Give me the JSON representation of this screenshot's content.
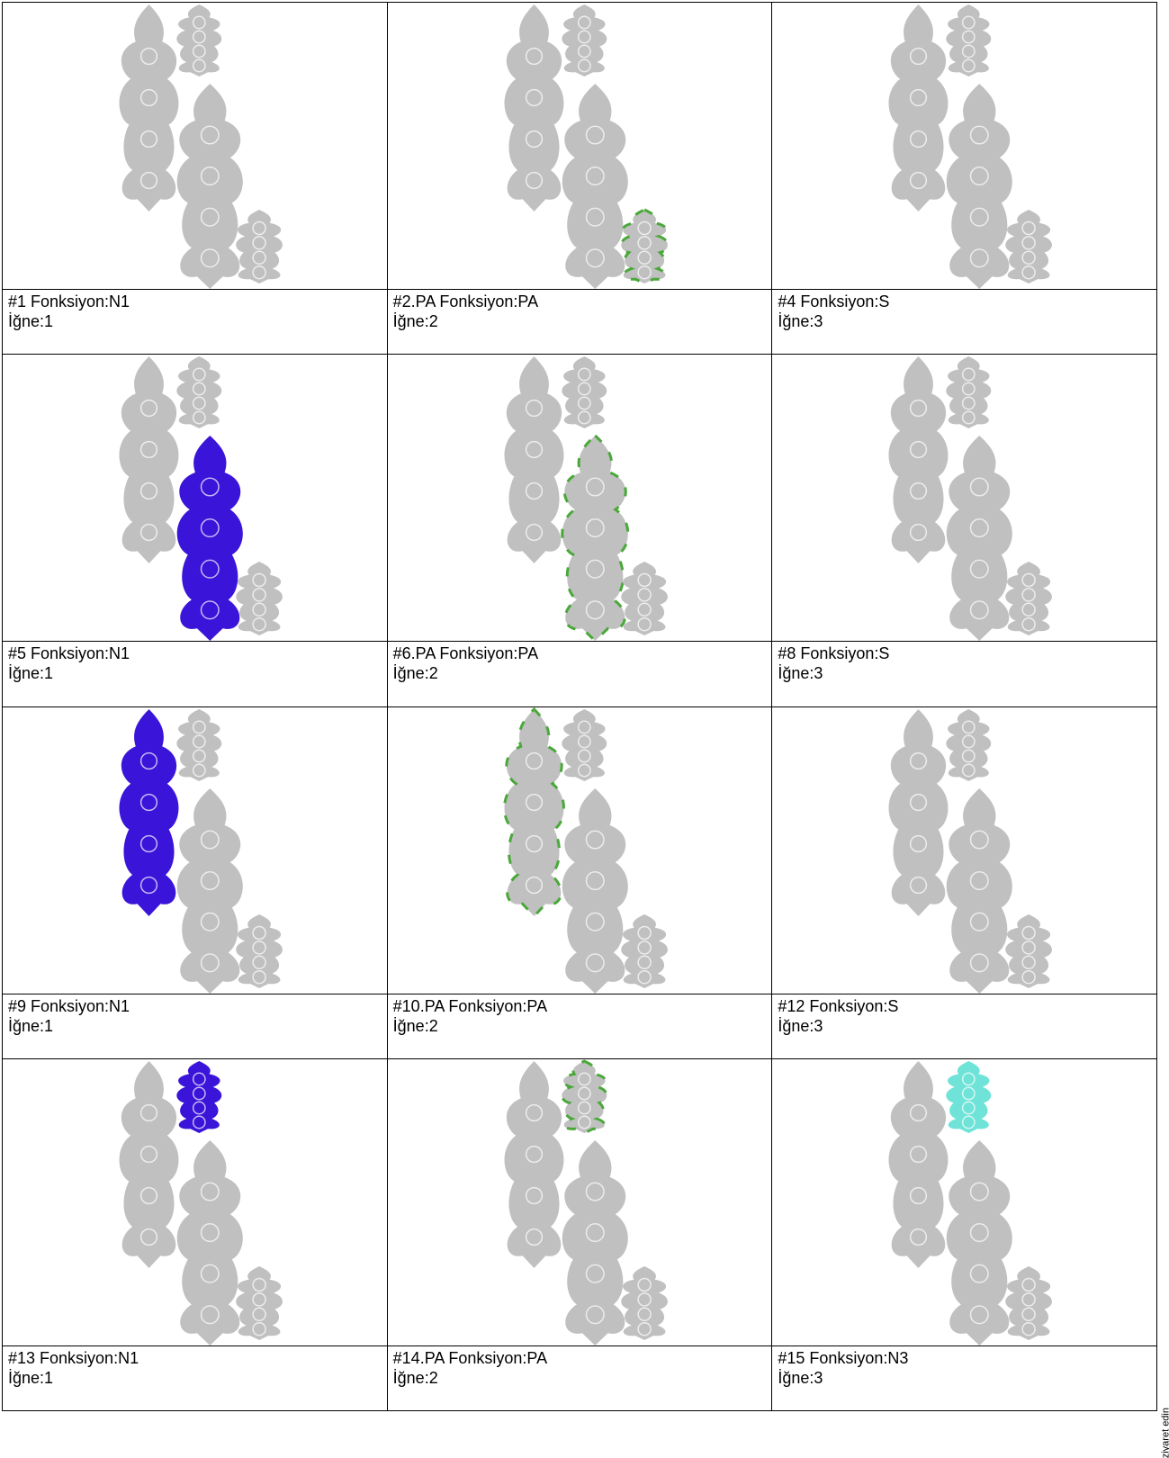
{
  "cells": [
    {
      "title": "#1 Fonksiyon:N1",
      "needle": "İğne:1",
      "highlight": null,
      "color": null,
      "style": null
    },
    {
      "title": "#2.PA Fonksiyon:PA",
      "needle": "İğne:2",
      "highlight": "small",
      "color": "#4aa83a",
      "style": "outline"
    },
    {
      "title": "#4 Fonksiyon:S",
      "needle": "İğne:3",
      "highlight": null,
      "color": null,
      "style": null
    },
    {
      "title": "#5 Fonksiyon:N1",
      "needle": "İğne:1",
      "highlight": "center",
      "color": "#3a14d8",
      "style": "fill"
    },
    {
      "title": "#6.PA Fonksiyon:PA",
      "needle": "İğne:2",
      "highlight": "center",
      "color": "#4aa83a",
      "style": "outline"
    },
    {
      "title": "#8 Fonksiyon:S",
      "needle": "İğne:3",
      "highlight": null,
      "color": null,
      "style": null
    },
    {
      "title": "#9 Fonksiyon:N1",
      "needle": "İğne:1",
      "highlight": "left",
      "color": "#3a14d8",
      "style": "fill"
    },
    {
      "title": "#10.PA Fonksiyon:PA",
      "needle": "İğne:2",
      "highlight": "left",
      "color": "#4aa83a",
      "style": "outline"
    },
    {
      "title": "#12 Fonksiyon:S",
      "needle": "İğne:3",
      "highlight": null,
      "color": null,
      "style": null
    },
    {
      "title": "#13 Fonksiyon:N1",
      "needle": "İğne:1",
      "highlight": "top",
      "color": "#3a14d8",
      "style": "fill"
    },
    {
      "title": "#14.PA Fonksiyon:PA",
      "needle": "İğne:2",
      "highlight": "top",
      "color": "#4aa83a",
      "style": "outline"
    },
    {
      "title": "#15 Fonksiyon:N3",
      "needle": "İğne:3",
      "highlight": "top",
      "color": "#6fe3d8",
      "style": "fill"
    }
  ],
  "design_color": "#c0c0c0",
  "side_note": "ziyaret edin"
}
